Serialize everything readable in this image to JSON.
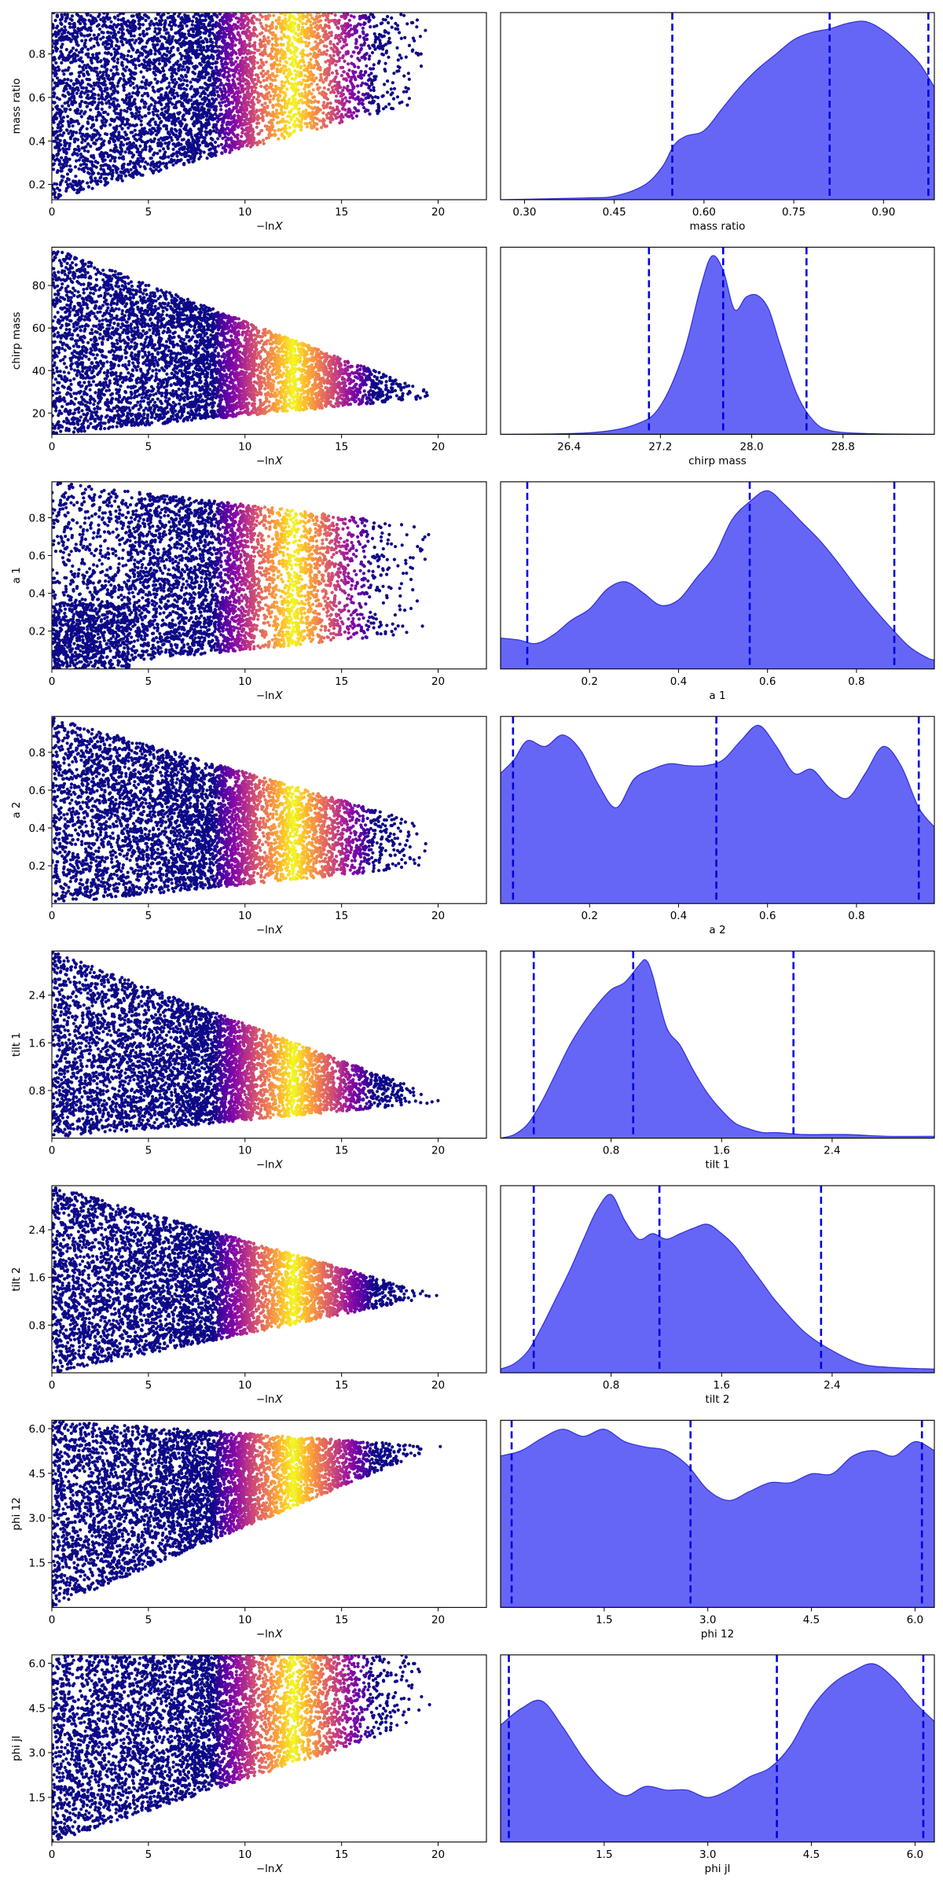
{
  "chart_data": [
    {
      "type": "scatter",
      "xlabel": "−ln𝑋",
      "ylabel": "mass ratio",
      "xlim": [
        0,
        22.5
      ],
      "ylim": [
        0.13,
        0.99
      ],
      "xticks": [
        0,
        5,
        10,
        15,
        20
      ],
      "xticklabels": [
        "0",
        "5",
        "10",
        "15",
        "20"
      ],
      "yticks": [
        0.2,
        0.4,
        0.6,
        0.8
      ],
      "yticklabels": [
        "0.2",
        "0.4",
        "0.6",
        "0.8"
      ],
      "colormap": "plasma",
      "peak_x": 12.5,
      "converged_x": 22,
      "spread_start": [
        0.13,
        0.99
      ],
      "spread_end": [
        0.6,
        0.99
      ]
    },
    {
      "type": "area",
      "xlabel": "mass ratio",
      "xlim": [
        0.26,
        0.985
      ],
      "xticks": [
        0.3,
        0.45,
        0.6,
        0.75,
        0.9
      ],
      "xticklabels": [
        "0.30",
        "0.45",
        "0.60",
        "0.75",
        "0.90"
      ],
      "quantiles": [
        0.547,
        0.81,
        0.975
      ],
      "x": [
        0.26,
        0.4,
        0.45,
        0.5,
        0.53,
        0.55,
        0.57,
        0.6,
        0.63,
        0.66,
        0.69,
        0.72,
        0.75,
        0.78,
        0.81,
        0.84,
        0.87,
        0.9,
        0.93,
        0.96,
        0.985
      ],
      "values": [
        0,
        0.01,
        0.02,
        0.08,
        0.18,
        0.3,
        0.35,
        0.38,
        0.5,
        0.62,
        0.72,
        0.8,
        0.88,
        0.92,
        0.94,
        0.97,
        0.98,
        0.93,
        0.85,
        0.75,
        0.62
      ]
    },
    {
      "type": "scatter",
      "xlabel": "−ln𝑋",
      "ylabel": "chirp mass",
      "xlim": [
        0,
        22.5
      ],
      "ylim": [
        10,
        98
      ],
      "xticks": [
        0,
        5,
        10,
        15,
        20
      ],
      "xticklabels": [
        "0",
        "5",
        "10",
        "15",
        "20"
      ],
      "yticks": [
        20,
        40,
        60,
        80
      ],
      "yticklabels": [
        "20",
        "40",
        "60",
        "80"
      ],
      "colormap": "plasma",
      "peak_x": 12.5,
      "converged_x": 22,
      "spread_start": [
        10,
        98
      ],
      "spread_end": [
        27.5,
        28.5
      ]
    },
    {
      "type": "area",
      "xlabel": "chirp mass",
      "xlim": [
        25.8,
        29.6
      ],
      "xticks": [
        26.4,
        27.2,
        28,
        28.8
      ],
      "xticklabels": [
        "26.4",
        "27.2",
        "28.0",
        "28.8"
      ],
      "quantiles": [
        27.1,
        27.75,
        28.48
      ],
      "x": [
        25.8,
        26.6,
        27.0,
        27.2,
        27.4,
        27.55,
        27.65,
        27.75,
        27.85,
        27.95,
        28.05,
        28.15,
        28.25,
        28.4,
        28.55,
        28.7,
        29.0,
        29.6
      ],
      "values": [
        0,
        0.01,
        0.06,
        0.16,
        0.45,
        0.82,
        1.0,
        0.92,
        0.7,
        0.77,
        0.78,
        0.7,
        0.5,
        0.22,
        0.07,
        0.02,
        0.005,
        0
      ]
    },
    {
      "type": "scatter",
      "xlabel": "−ln𝑋",
      "ylabel": "a 1",
      "xlim": [
        0,
        22.5
      ],
      "ylim": [
        0,
        0.99
      ],
      "xticks": [
        0,
        5,
        10,
        15,
        20
      ],
      "xticklabels": [
        "0",
        "5",
        "10",
        "15",
        "20"
      ],
      "yticks": [
        0.2,
        0.4,
        0.6,
        0.8
      ],
      "yticklabels": [
        "0.2",
        "0.4",
        "0.6",
        "0.8"
      ],
      "colormap": "plasma",
      "peak_x": 12.5,
      "converged_x": 22,
      "spread_start": [
        0,
        0.99
      ],
      "spread_end": [
        0.2,
        0.75
      ]
    },
    {
      "type": "area",
      "xlabel": "a 1",
      "xlim": [
        0,
        0.975
      ],
      "xticks": [
        0.2,
        0.4,
        0.6,
        0.8
      ],
      "xticklabels": [
        "0.2",
        "0.4",
        "0.6",
        "0.8"
      ],
      "quantiles": [
        0.06,
        0.56,
        0.885
      ],
      "x": [
        0,
        0.04,
        0.08,
        0.12,
        0.16,
        0.2,
        0.24,
        0.28,
        0.32,
        0.36,
        0.4,
        0.44,
        0.48,
        0.52,
        0.56,
        0.6,
        0.64,
        0.68,
        0.72,
        0.76,
        0.8,
        0.84,
        0.88,
        0.92,
        0.96,
        0.975
      ],
      "values": [
        0.17,
        0.16,
        0.14,
        0.19,
        0.27,
        0.33,
        0.44,
        0.48,
        0.42,
        0.35,
        0.38,
        0.5,
        0.62,
        0.82,
        0.92,
        0.98,
        0.9,
        0.8,
        0.7,
        0.58,
        0.45,
        0.33,
        0.22,
        0.12,
        0.06,
        0.05
      ]
    },
    {
      "type": "scatter",
      "xlabel": "−ln𝑋",
      "ylabel": "a 2",
      "xlim": [
        0,
        22.5
      ],
      "ylim": [
        0,
        0.99
      ],
      "xticks": [
        0,
        5,
        10,
        15,
        20
      ],
      "xticklabels": [
        "0",
        "5",
        "10",
        "15",
        "20"
      ],
      "yticks": [
        0.2,
        0.4,
        0.6,
        0.8
      ],
      "yticklabels": [
        "0.2",
        "0.4",
        "0.6",
        "0.8"
      ],
      "colormap": "plasma",
      "peak_x": 12.5,
      "converged_x": 22,
      "spread_start": [
        0,
        0.99
      ],
      "spread_end": [
        0.2,
        0.4
      ]
    },
    {
      "type": "area",
      "xlabel": "a 2",
      "xlim": [
        0,
        0.975
      ],
      "xticks": [
        0.2,
        0.4,
        0.6,
        0.8
      ],
      "xticklabels": [
        "0.2",
        "0.4",
        "0.6",
        "0.8"
      ],
      "quantiles": [
        0.028,
        0.485,
        0.94
      ],
      "x": [
        0,
        0.03,
        0.06,
        0.1,
        0.14,
        0.18,
        0.22,
        0.26,
        0.3,
        0.34,
        0.38,
        0.42,
        0.46,
        0.5,
        0.54,
        0.58,
        0.62,
        0.66,
        0.7,
        0.74,
        0.78,
        0.82,
        0.86,
        0.9,
        0.94,
        0.975
      ],
      "values": [
        0.68,
        0.75,
        0.85,
        0.82,
        0.88,
        0.8,
        0.62,
        0.5,
        0.65,
        0.7,
        0.73,
        0.72,
        0.72,
        0.75,
        0.85,
        0.93,
        0.82,
        0.68,
        0.7,
        0.6,
        0.55,
        0.68,
        0.82,
        0.72,
        0.5,
        0.4
      ]
    },
    {
      "type": "scatter",
      "xlabel": "−ln𝑋",
      "ylabel": "tilt 1",
      "xlim": [
        0,
        22.5
      ],
      "ylim": [
        0,
        3.14
      ],
      "xticks": [
        0,
        5,
        10,
        15,
        20
      ],
      "xticklabels": [
        "0",
        "5",
        "10",
        "15",
        "20"
      ],
      "yticks": [
        0.8,
        1.6,
        2.4
      ],
      "yticklabels": [
        "0.8",
        "1.6",
        "2.4"
      ],
      "colormap": "plasma",
      "peak_x": 12.5,
      "converged_x": 22,
      "spread_start": [
        0,
        3.14
      ],
      "spread_end": [
        0.6,
        0.7
      ]
    },
    {
      "type": "area",
      "xlabel": "tilt 1",
      "xlim": [
        0,
        3.14
      ],
      "xticks": [
        0.8,
        1.6,
        2.4
      ],
      "xticklabels": [
        "0.8",
        "1.6",
        "2.4"
      ],
      "quantiles": [
        0.24,
        0.96,
        2.12
      ],
      "x": [
        0,
        0.1,
        0.2,
        0.3,
        0.4,
        0.5,
        0.6,
        0.7,
        0.8,
        0.9,
        1.0,
        1.05,
        1.1,
        1.2,
        1.3,
        1.4,
        1.5,
        1.6,
        1.7,
        1.8,
        1.9,
        2.0,
        2.2,
        2.5,
        2.8,
        3.14
      ],
      "values": [
        0,
        0.02,
        0.08,
        0.2,
        0.35,
        0.5,
        0.62,
        0.72,
        0.8,
        0.84,
        0.93,
        0.96,
        0.88,
        0.6,
        0.5,
        0.36,
        0.24,
        0.15,
        0.08,
        0.05,
        0.03,
        0.03,
        0.02,
        0.02,
        0.01,
        0.01
      ]
    },
    {
      "type": "scatter",
      "xlabel": "−ln𝑋",
      "ylabel": "tilt 2",
      "xlim": [
        0,
        22.5
      ],
      "ylim": [
        0,
        3.14
      ],
      "xticks": [
        0,
        5,
        10,
        15,
        20
      ],
      "xticklabels": [
        "0",
        "5",
        "10",
        "15",
        "20"
      ],
      "yticks": [
        0.8,
        1.6,
        2.4
      ],
      "yticklabels": [
        "0.8",
        "1.6",
        "2.4"
      ],
      "colormap": "plasma",
      "peak_x": 12.5,
      "converged_x": 22,
      "spread_start": [
        0,
        3.14
      ],
      "spread_end": [
        1.3,
        1.3
      ]
    },
    {
      "type": "area",
      "xlabel": "tilt 2",
      "xlim": [
        0,
        3.14
      ],
      "xticks": [
        0.8,
        1.6,
        2.4
      ],
      "xticklabels": [
        "0.8",
        "1.6",
        "2.4"
      ],
      "quantiles": [
        0.24,
        1.15,
        2.32
      ],
      "x": [
        0,
        0.1,
        0.2,
        0.3,
        0.4,
        0.5,
        0.6,
        0.7,
        0.8,
        0.9,
        1.0,
        1.1,
        1.2,
        1.3,
        1.4,
        1.5,
        1.6,
        1.7,
        1.8,
        1.9,
        2.0,
        2.2,
        2.4,
        2.6,
        2.8,
        3.14
      ],
      "values": [
        0.02,
        0.05,
        0.12,
        0.25,
        0.4,
        0.55,
        0.72,
        0.88,
        0.96,
        0.82,
        0.72,
        0.75,
        0.72,
        0.75,
        0.78,
        0.8,
        0.75,
        0.68,
        0.58,
        0.48,
        0.38,
        0.22,
        0.12,
        0.05,
        0.03,
        0.02
      ]
    },
    {
      "type": "scatter",
      "xlabel": "−ln𝑋",
      "ylabel": "phi 12",
      "xlim": [
        0,
        22.5
      ],
      "ylim": [
        0,
        6.28
      ],
      "xticks": [
        0,
        5,
        10,
        15,
        20
      ],
      "xticklabels": [
        "0",
        "5",
        "10",
        "15",
        "20"
      ],
      "yticks": [
        1.5,
        3.0,
        4.5,
        6.0
      ],
      "yticklabels": [
        "1.5",
        "3.0",
        "4.5",
        "6.0"
      ],
      "colormap": "plasma",
      "peak_x": 12.5,
      "converged_x": 22,
      "spread_start": [
        0,
        6.28
      ],
      "spread_end": [
        5.4,
        5.4
      ]
    },
    {
      "type": "area",
      "xlabel": "phi 12",
      "xlim": [
        0,
        6.28
      ],
      "xticks": [
        1.5,
        3.0,
        4.5,
        6.0
      ],
      "xticklabels": [
        "1.5",
        "3.0",
        "4.5",
        "6.0"
      ],
      "quantiles": [
        0.16,
        2.75,
        6.1
      ],
      "x": [
        0,
        0.3,
        0.6,
        0.9,
        1.2,
        1.5,
        1.8,
        2.1,
        2.4,
        2.7,
        3.0,
        3.3,
        3.6,
        3.9,
        4.2,
        4.5,
        4.8,
        5.1,
        5.4,
        5.7,
        6.0,
        6.28
      ],
      "values": [
        0.85,
        0.88,
        0.95,
        1.0,
        0.96,
        1.0,
        0.93,
        0.9,
        0.88,
        0.8,
        0.66,
        0.6,
        0.65,
        0.7,
        0.7,
        0.75,
        0.75,
        0.85,
        0.88,
        0.85,
        0.93,
        0.88
      ]
    },
    {
      "type": "scatter",
      "xlabel": "−ln𝑋",
      "ylabel": "phi jl",
      "xlim": [
        0,
        22.5
      ],
      "ylim": [
        0,
        6.28
      ],
      "xticks": [
        0,
        5,
        10,
        15,
        20
      ],
      "xticklabels": [
        "0",
        "5",
        "10",
        "15",
        "20"
      ],
      "yticks": [
        1.5,
        3.0,
        4.5,
        6.0
      ],
      "yticklabels": [
        "1.5",
        "3.0",
        "4.5",
        "6.0"
      ],
      "colormap": "plasma",
      "peak_x": 12.5,
      "converged_x": 22,
      "spread_start": [
        0,
        6.28
      ],
      "spread_end": [
        4.2,
        6.28
      ]
    },
    {
      "type": "area",
      "xlabel": "phi jl",
      "xlim": [
        0,
        6.28
      ],
      "xticks": [
        1.5,
        3.0,
        4.5,
        6.0
      ],
      "xticklabels": [
        "1.5",
        "3.0",
        "4.5",
        "6.0"
      ],
      "quantiles": [
        0.12,
        4.0,
        6.12
      ],
      "x": [
        0,
        0.3,
        0.6,
        0.9,
        1.2,
        1.5,
        1.8,
        2.1,
        2.4,
        2.7,
        3.0,
        3.3,
        3.6,
        3.9,
        4.2,
        4.5,
        4.8,
        5.1,
        5.4,
        5.7,
        6.0,
        6.28
      ],
      "values": [
        0.63,
        0.72,
        0.76,
        0.62,
        0.45,
        0.32,
        0.25,
        0.3,
        0.28,
        0.28,
        0.24,
        0.28,
        0.35,
        0.4,
        0.52,
        0.72,
        0.85,
        0.92,
        0.96,
        0.88,
        0.75,
        0.65
      ]
    }
  ]
}
